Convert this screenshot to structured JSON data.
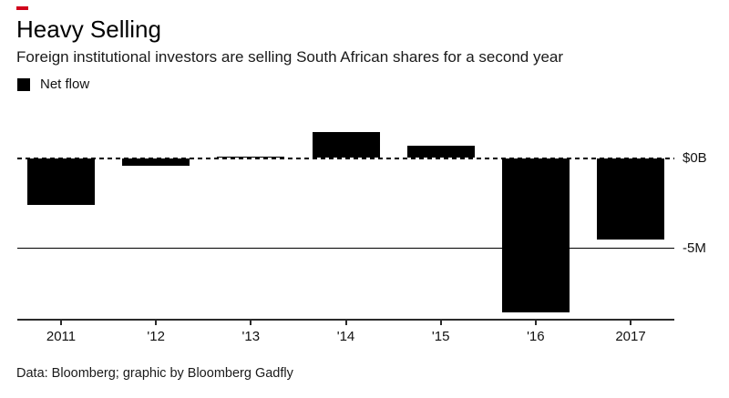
{
  "colors": {
    "accent": "#d0021b",
    "bar": "#000000",
    "text": "#1a1a1a"
  },
  "header": {
    "title": "Heavy Selling",
    "subtitle": "Foreign institutional investors are selling South African shares for a second year"
  },
  "legend": {
    "label": "Net flow"
  },
  "chart_data": {
    "type": "bar",
    "title": "Heavy Selling",
    "subtitle": "Foreign institutional investors are selling South African shares for a second year",
    "series_name": "Net flow",
    "categories": [
      "2011",
      "'12",
      "'13",
      "'14",
      "'15",
      "'16",
      "2017"
    ],
    "values": [
      -2.6,
      -0.45,
      0.1,
      1.45,
      0.7,
      -8.5,
      -4.5
    ],
    "y_ticks": [
      {
        "value": 0,
        "label": "$0B",
        "style": "dashed"
      },
      {
        "value": -5,
        "label": "-5M",
        "style": "solid"
      }
    ],
    "ylim": [
      -9,
      2.2
    ],
    "grid": "off",
    "legend_position": "top-left",
    "bar_color": "#000000"
  },
  "footer": {
    "credit": "Data: Bloomberg; graphic by Bloomberg Gadfly"
  }
}
